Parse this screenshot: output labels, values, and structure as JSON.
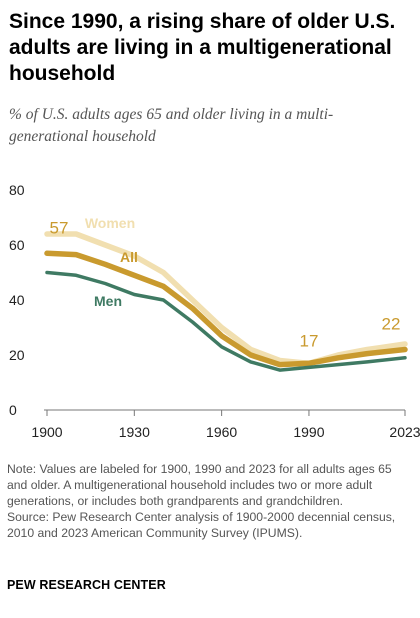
{
  "title": "Since 1990, a rising share of older U.S. adults are living in a multigenerational household",
  "subtitle": "% of U.S. adults ages 65 and older living in a multi-generational household",
  "notes": {
    "note": "Note: Values are labeled for 1900, 1990 and 2023 for all adults ages 65 and older. A multigenerational household includes two or more adult generations, or includes both grandparents and grandchildren.",
    "source": "Source: Pew Research Center analysis of 1900-2000 decennial census, 2010 and 2023 American Community Survey (IPUMS)."
  },
  "brand": "PEW RESEARCH CENTER",
  "chart_data": {
    "type": "line",
    "title": "Since 1990, a rising share of older U.S. adults are living in a multigenerational household",
    "subtitle": "% of U.S. adults ages 65 and older living in a multi-generational household",
    "x": [
      1900,
      1910,
      1920,
      1930,
      1940,
      1950,
      1960,
      1970,
      1980,
      1990,
      2000,
      2010,
      2023
    ],
    "x_ticks": [
      1900,
      1930,
      1960,
      1990,
      2023
    ],
    "y_ticks": [
      0,
      20,
      40,
      60,
      80
    ],
    "xlim": [
      1900,
      2023
    ],
    "ylim": [
      0,
      80
    ],
    "grid": false,
    "series": [
      {
        "name": "Women",
        "color": "#f1dfb0",
        "values": [
          64,
          64,
          60,
          56,
          50,
          40,
          30,
          22,
          18,
          17,
          20,
          22,
          24
        ]
      },
      {
        "name": "All",
        "color": "#c99a2e",
        "values": [
          57,
          56.5,
          53,
          49,
          45,
          37,
          27,
          20,
          16.5,
          17,
          19,
          20.5,
          22
        ]
      },
      {
        "name": "Men",
        "color": "#3f7a63",
        "values": [
          50,
          49,
          46,
          42,
          40,
          32,
          23,
          17.5,
          14.5,
          15.5,
          16.5,
          17.5,
          19
        ]
      }
    ],
    "value_labels": [
      {
        "series": "All",
        "x": 1900,
        "text": "57"
      },
      {
        "series": "All",
        "x": 1990,
        "text": "17"
      },
      {
        "series": "All",
        "x": 2023,
        "text": "22"
      }
    ]
  }
}
